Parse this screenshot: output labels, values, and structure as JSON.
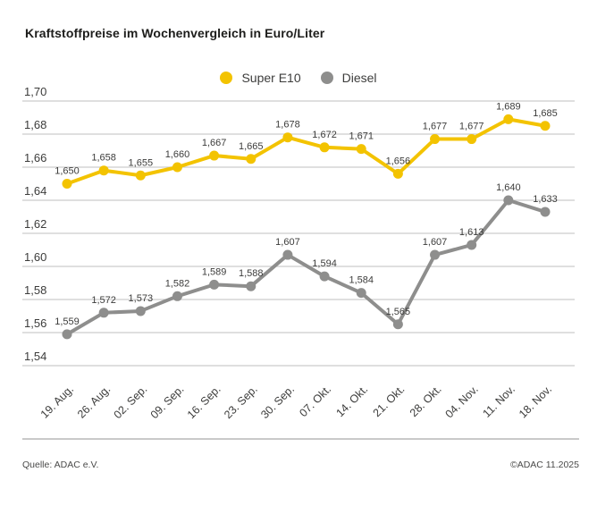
{
  "title": "Kraftstoffpreise im Wochenvergleich in Euro/Liter",
  "footer": {
    "source": "Quelle: ADAC e.V.",
    "copyright": "©ADAC 11.2025"
  },
  "colors": {
    "super_e10": "#f3c300",
    "diesel": "#8e8e8d",
    "gridline": "#cccccc",
    "axis_text": "#3c3c3b",
    "point_label_text": "#3c3c3b"
  },
  "chart_data": {
    "type": "line",
    "title": "Kraftstoffpreise im Wochenvergleich in Euro/Liter",
    "xlabel": "",
    "ylabel": "Euro/Liter",
    "grid": true,
    "legend_position": "top-center",
    "categories": [
      "19. Aug.",
      "26. Aug.",
      "02. Sep.",
      "09. Sep.",
      "16. Sep.",
      "23. Sep.",
      "30. Sep.",
      "07. Okt.",
      "14. Okt.",
      "21. Okt.",
      "28. Okt.",
      "04. Nov.",
      "11. Nov.",
      "18. Nov."
    ],
    "series": [
      {
        "name": "Super E10",
        "color": "#f3c300",
        "values": [
          1.65,
          1.658,
          1.655,
          1.66,
          1.667,
          1.665,
          1.678,
          1.672,
          1.671,
          1.656,
          1.677,
          1.677,
          1.689,
          1.685
        ],
        "labels": [
          "1,650",
          "1,658",
          "1,655",
          "1,660",
          "1,667",
          "1,665",
          "1,678",
          "1,672",
          "1,671",
          "1,656",
          "1,677",
          "1,677",
          "1,689",
          "1,685"
        ]
      },
      {
        "name": "Diesel",
        "color": "#8e8e8d",
        "values": [
          1.559,
          1.572,
          1.573,
          1.582,
          1.589,
          1.588,
          1.607,
          1.594,
          1.584,
          1.565,
          1.607,
          1.613,
          1.64,
          1.633
        ],
        "labels": [
          "1,559",
          "1,572",
          "1,573",
          "1,582",
          "1,589",
          "1,588",
          "1,607",
          "1,594",
          "1,584",
          "1,565",
          "1,607",
          "1,613",
          "1,640",
          "1,633"
        ]
      }
    ],
    "y_axis": {
      "min": 1.54,
      "max": 1.7,
      "step": 0.02,
      "tick_labels": [
        "1,70",
        "1,68",
        "1,66",
        "1,64",
        "1,62",
        "1,60",
        "1,58",
        "1,56",
        "1,54"
      ]
    }
  }
}
